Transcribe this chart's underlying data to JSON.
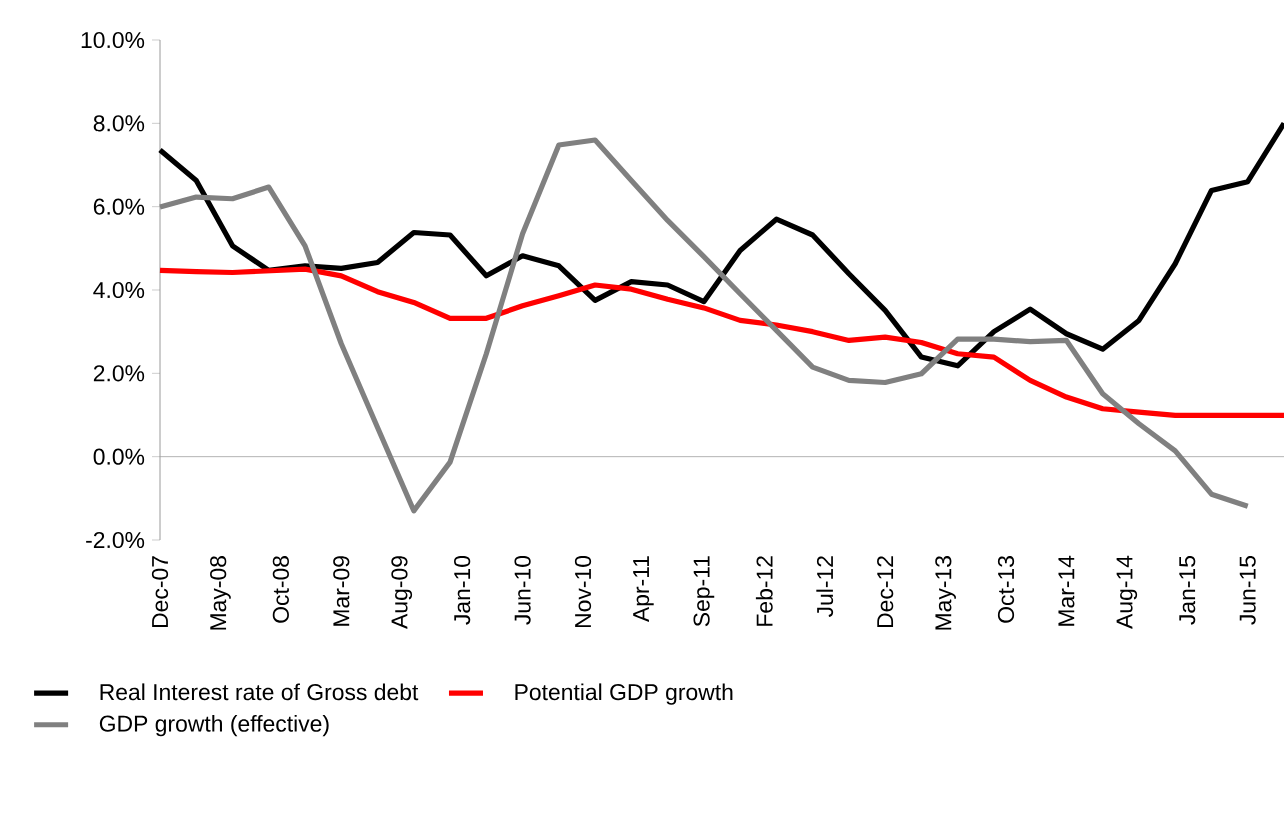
{
  "chart_data": {
    "type": "line",
    "x": [
      "2007-12",
      "2008-03",
      "2008-06",
      "2008-09",
      "2008-12",
      "2009-03",
      "2009-06",
      "2009-09",
      "2009-12",
      "2010-03",
      "2010-06",
      "2010-09",
      "2010-12",
      "2011-03",
      "2011-06",
      "2011-09",
      "2011-12",
      "2012-03",
      "2012-06",
      "2012-09",
      "2012-12",
      "2013-03",
      "2013-06",
      "2013-09",
      "2013-12",
      "2014-03",
      "2014-06",
      "2014-09",
      "2014-12",
      "2015-03",
      "2015-06",
      "2015-09"
    ],
    "series": [
      {
        "name": "Real Interest rate of Gross debt",
        "color": "#000000",
        "values": [
          7.36,
          6.63,
          5.06,
          4.47,
          4.58,
          4.52,
          4.66,
          5.38,
          5.32,
          4.34,
          4.82,
          4.58,
          3.75,
          4.2,
          4.12,
          3.72,
          4.95,
          5.7,
          5.32,
          4.39,
          3.51,
          2.39,
          2.18,
          3.0,
          3.54,
          2.95,
          2.58,
          3.27,
          4.63,
          6.39,
          6.6,
          8.0
        ]
      },
      {
        "name": "Potential GDP growth",
        "color": "#ff0000",
        "values": [
          4.47,
          4.44,
          4.42,
          4.46,
          4.5,
          4.34,
          3.96,
          3.7,
          3.32,
          3.32,
          3.62,
          3.86,
          4.12,
          4.02,
          3.78,
          3.57,
          3.27,
          3.16,
          3.0,
          2.79,
          2.87,
          2.74,
          2.47,
          2.39,
          1.83,
          1.43,
          1.15,
          1.07,
          0.99,
          0.99,
          0.99,
          0.99
        ]
      },
      {
        "name": "GDP growth (effective)",
        "color": "#808080",
        "values": [
          5.99,
          6.23,
          6.19,
          6.47,
          5.06,
          2.71,
          0.7,
          -1.3,
          -0.13,
          2.47,
          5.35,
          7.48,
          7.6,
          6.63,
          5.67,
          4.8,
          3.91,
          3.03,
          2.15,
          1.83,
          1.78,
          1.99,
          2.82,
          2.82,
          2.76,
          2.79,
          1.51,
          0.79,
          0.14,
          -0.9,
          -1.19,
          null
        ]
      }
    ],
    "xlim": [
      "2007-12",
      "2015-09"
    ],
    "xticks": [
      {
        "value": "2007-12",
        "label": "Dec-07"
      },
      {
        "value": "2008-05",
        "label": "May-08"
      },
      {
        "value": "2008-10",
        "label": "Oct-08"
      },
      {
        "value": "2009-03",
        "label": "Mar-09"
      },
      {
        "value": "2009-08",
        "label": "Aug-09"
      },
      {
        "value": "2010-01",
        "label": "Jan-10"
      },
      {
        "value": "2010-06",
        "label": "Jun-10"
      },
      {
        "value": "2010-11",
        "label": "Nov-10"
      },
      {
        "value": "2011-04",
        "label": "Apr-11"
      },
      {
        "value": "2011-09",
        "label": "Sep-11"
      },
      {
        "value": "2012-02",
        "label": "Feb-12"
      },
      {
        "value": "2012-07",
        "label": "Jul-12"
      },
      {
        "value": "2012-12",
        "label": "Dec-12"
      },
      {
        "value": "2013-05",
        "label": "May-13"
      },
      {
        "value": "2013-10",
        "label": "Oct-13"
      },
      {
        "value": "2014-03",
        "label": "Mar-14"
      },
      {
        "value": "2014-08",
        "label": "Aug-14"
      },
      {
        "value": "2015-01",
        "label": "Jan-15"
      },
      {
        "value": "2015-06",
        "label": "Jun-15"
      }
    ],
    "ylim": [
      -2,
      10
    ],
    "yticks": [
      {
        "value": -2,
        "label": "-2.0%"
      },
      {
        "value": 0,
        "label": "0.0%"
      },
      {
        "value": 2,
        "label": "2.0%"
      },
      {
        "value": 4,
        "label": "4.0%"
      },
      {
        "value": 6,
        "label": "6.0%"
      },
      {
        "value": 8,
        "label": "8.0%"
      },
      {
        "value": 10,
        "label": "10.0%"
      }
    ],
    "ref_lines": [
      {
        "axis": "y",
        "value": 0,
        "color": "#a0a0a0"
      }
    ],
    "legend": "bottom",
    "marker": "none",
    "line_style": "solid"
  }
}
